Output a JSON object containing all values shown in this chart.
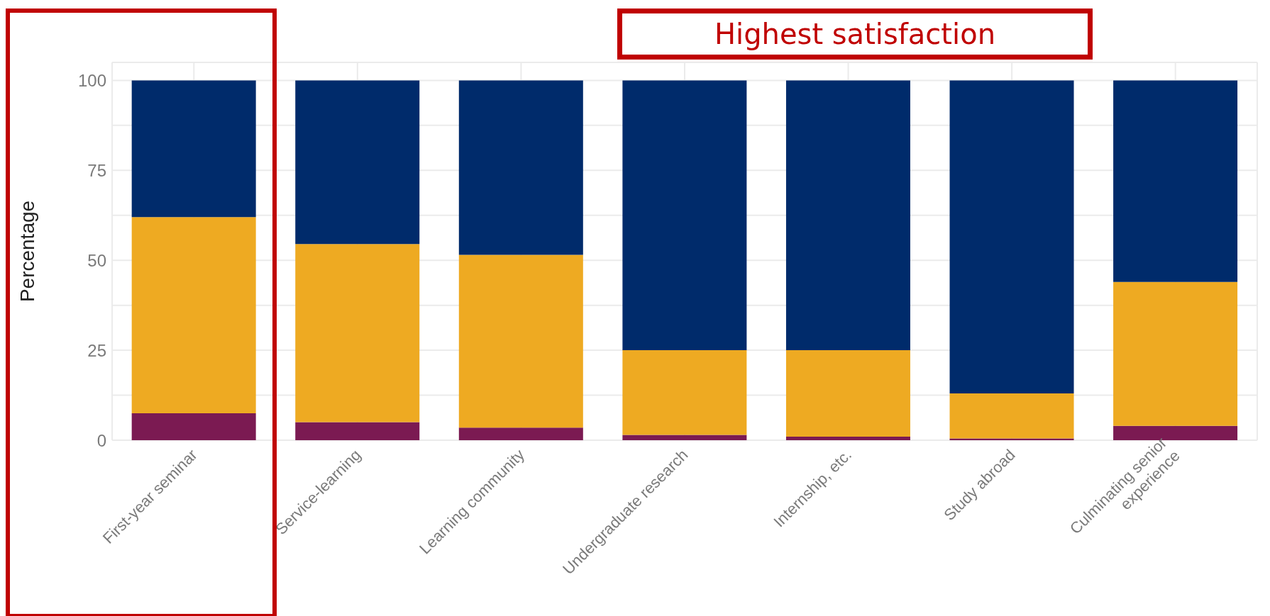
{
  "chart_data": {
    "type": "bar",
    "stacked": true,
    "ylabel": "Percentage",
    "categories": [
      "First-year seminar",
      "Service-learning",
      "Learning community",
      "Undergraduate research",
      "Internship, etc.",
      "Study abroad",
      "Culminating senior\nexperience"
    ],
    "series": [
      {
        "color": "#7b1a52",
        "values": [
          7.5,
          5,
          3.5,
          1.5,
          1,
          0.5,
          4
        ]
      },
      {
        "color": "#eeaa22",
        "values": [
          54.5,
          49.5,
          48,
          23.5,
          24,
          12.5,
          40
        ]
      },
      {
        "color": "#002b6b",
        "values": [
          38,
          45.5,
          48.5,
          75,
          75,
          87,
          56
        ]
      }
    ],
    "ylim": [
      0,
      105
    ],
    "yticks": [
      0,
      {
        "value": 12.5,
        "label": null
      },
      25,
      {
        "value": 37.5,
        "label": null
      },
      50,
      {
        "value": 62.5,
        "label": null
      },
      75,
      {
        "value": 87.5,
        "label": null
      },
      100
    ],
    "grid": true,
    "legend": false,
    "annotations": [
      "Highest satisfaction"
    ]
  }
}
